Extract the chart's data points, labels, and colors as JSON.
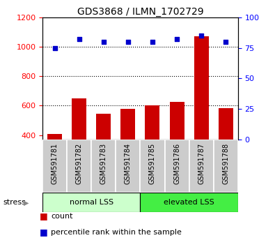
{
  "title": "GDS3868 / ILMN_1702729",
  "categories": [
    "GSM591781",
    "GSM591782",
    "GSM591783",
    "GSM591784",
    "GSM591785",
    "GSM591786",
    "GSM591787",
    "GSM591788"
  ],
  "bar_values": [
    410,
    648,
    545,
    580,
    600,
    625,
    1070,
    585
  ],
  "dot_values": [
    75,
    82,
    80,
    80,
    80,
    82,
    85,
    80
  ],
  "ylim_left": [
    370,
    1200
  ],
  "ylim_right": [
    0,
    100
  ],
  "yticks_left": [
    400,
    600,
    800,
    1000,
    1200
  ],
  "yticks_right": [
    0,
    25,
    50,
    75,
    100
  ],
  "grid_values": [
    600,
    800,
    1000
  ],
  "bar_color": "#cc0000",
  "dot_color": "#0000cc",
  "bar_width": 0.6,
  "group1_label": "normal LSS",
  "group2_label": "elevated LSS",
  "group1_indices": [
    0,
    1,
    2,
    3
  ],
  "group2_indices": [
    4,
    5,
    6,
    7
  ],
  "stress_label": "stress",
  "legend_count": "count",
  "legend_percentile": "percentile rank within the sample",
  "group1_color": "#ccffcc",
  "group2_color": "#44ee44",
  "tick_area_color": "#cccccc",
  "title_fontsize": 10,
  "axis_fontsize": 8,
  "label_fontsize": 7,
  "legend_fontsize": 8
}
